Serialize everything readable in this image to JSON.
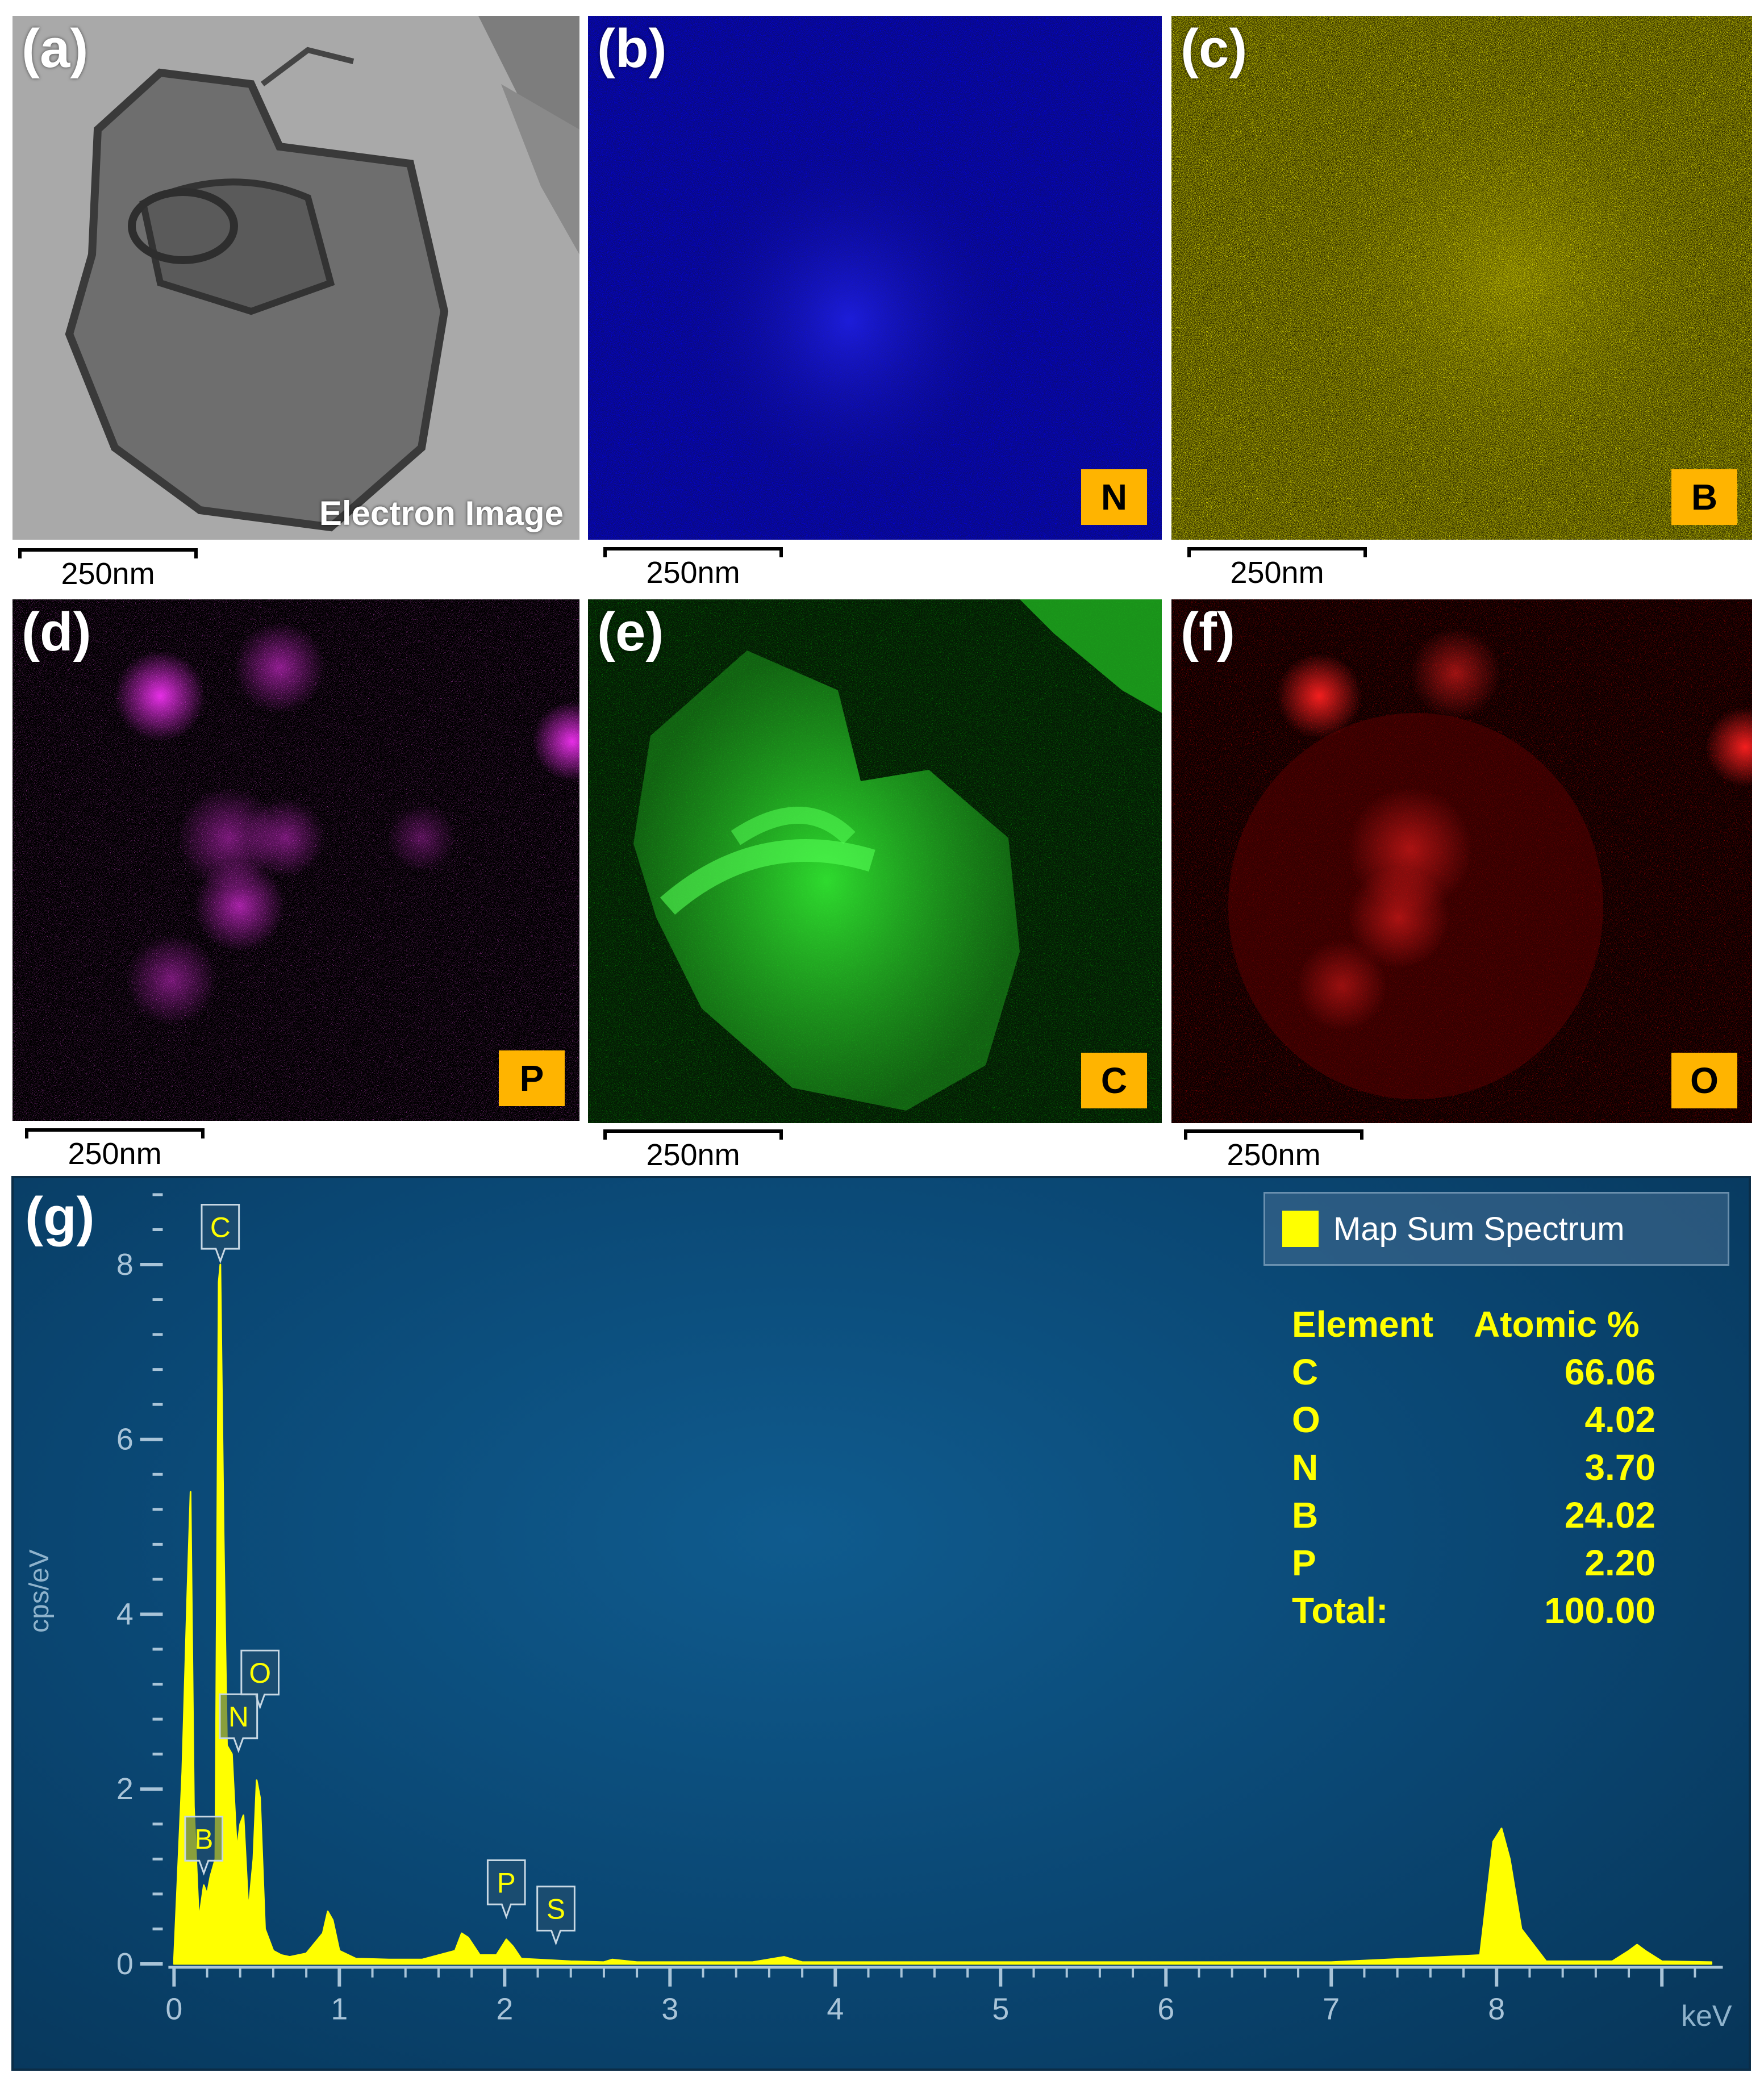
{
  "panels": [
    {
      "id": "a",
      "label": "(a)",
      "caption": "Electron Image",
      "scalebar": "250nm"
    },
    {
      "id": "b",
      "label": "(b)",
      "element": "N",
      "color": "#1a1aff",
      "scalebar": "250nm"
    },
    {
      "id": "c",
      "label": "(c)",
      "element": "B",
      "color": "#e8e000",
      "scalebar": "250nm"
    },
    {
      "id": "d",
      "label": "(d)",
      "element": "P",
      "color": "#ff22ff",
      "scalebar": "250nm"
    },
    {
      "id": "e",
      "label": "(e)",
      "element": "C",
      "color": "#22ff22",
      "scalebar": "250nm"
    },
    {
      "id": "f",
      "label": "(f)",
      "element": "O",
      "color": "#ff1a1a",
      "scalebar": "250nm"
    }
  ],
  "spectrum": {
    "label": "(g)",
    "legend": "Map Sum Spectrum",
    "table": {
      "header": [
        "Element",
        "Atomic %"
      ],
      "rows": [
        [
          "C",
          "66.06"
        ],
        [
          "O",
          "4.02"
        ],
        [
          "N",
          "3.70"
        ],
        [
          "B",
          "24.02"
        ],
        [
          "P",
          "2.20"
        ]
      ],
      "total": [
        "Total:",
        "100.00"
      ]
    }
  },
  "chart_data": {
    "type": "area",
    "xlabel": "keV",
    "ylabel": "cps/eV",
    "xlim": [
      0,
      9.3
    ],
    "ylim": [
      0,
      8.6
    ],
    "xticks": [
      0,
      1,
      2,
      3,
      4,
      5,
      6,
      7,
      8
    ],
    "yticks": [
      0,
      2,
      4,
      6,
      8
    ],
    "series": [
      {
        "name": "Map Sum Spectrum",
        "color": "#ffff00",
        "x": [
          0.0,
          0.02,
          0.05,
          0.08,
          0.1,
          0.12,
          0.15,
          0.18,
          0.2,
          0.22,
          0.25,
          0.27,
          0.28,
          0.3,
          0.32,
          0.35,
          0.38,
          0.4,
          0.42,
          0.45,
          0.48,
          0.5,
          0.52,
          0.55,
          0.6,
          0.65,
          0.7,
          0.8,
          0.9,
          0.93,
          0.96,
          1.0,
          1.1,
          1.3,
          1.5,
          1.7,
          1.74,
          1.78,
          1.85,
          1.95,
          2.01,
          2.05,
          2.1,
          2.2,
          2.3,
          2.4,
          2.6,
          2.65,
          2.8,
          3.0,
          3.5,
          3.69,
          3.8,
          4.0,
          5.0,
          6.0,
          7.0,
          7.9,
          7.98,
          8.03,
          8.08,
          8.15,
          8.3,
          8.7,
          8.8,
          8.85,
          8.9,
          9.0,
          9.3
        ],
        "y": [
          0.05,
          0.9,
          2.2,
          4.2,
          5.4,
          1.8,
          0.5,
          0.9,
          0.8,
          1.0,
          1.2,
          7.8,
          8.0,
          4.9,
          2.5,
          2.4,
          1.3,
          1.6,
          1.7,
          0.6,
          1.2,
          2.1,
          1.9,
          0.4,
          0.15,
          0.1,
          0.08,
          0.12,
          0.35,
          0.6,
          0.5,
          0.15,
          0.06,
          0.05,
          0.05,
          0.15,
          0.35,
          0.3,
          0.1,
          0.1,
          0.28,
          0.2,
          0.06,
          0.05,
          0.04,
          0.03,
          0.02,
          0.05,
          0.02,
          0.02,
          0.02,
          0.08,
          0.02,
          0.02,
          0.02,
          0.02,
          0.02,
          0.1,
          1.4,
          1.55,
          1.2,
          0.4,
          0.03,
          0.03,
          0.15,
          0.22,
          0.15,
          0.03,
          0.02
        ]
      }
    ],
    "peak_labels": [
      {
        "text": "C",
        "x": 0.28,
        "y": 8.0
      },
      {
        "text": "O",
        "x": 0.52,
        "y": 2.9
      },
      {
        "text": "N",
        "x": 0.39,
        "y": 2.4
      },
      {
        "text": "B",
        "x": 0.18,
        "y": 1.0
      },
      {
        "text": "P",
        "x": 2.01,
        "y": 0.5
      },
      {
        "text": "S",
        "x": 2.31,
        "y": 0.2
      }
    ]
  }
}
